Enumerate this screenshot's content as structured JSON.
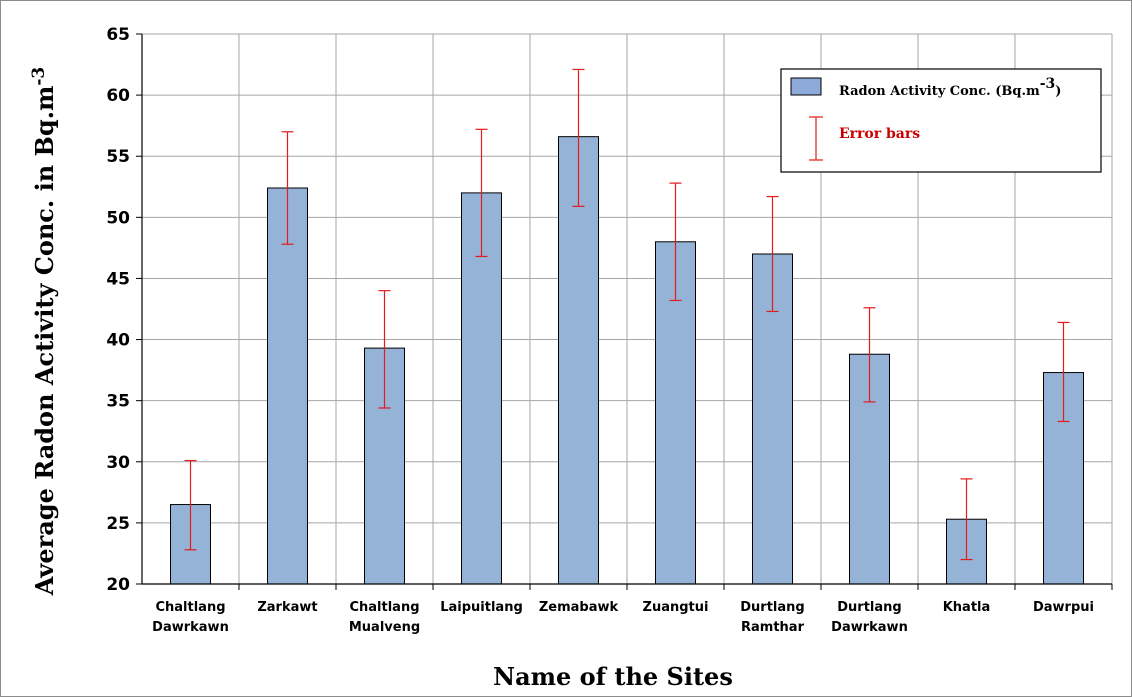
{
  "chart_data": {
    "type": "bar",
    "categories": [
      [
        "Chaltlang",
        "Dawrkawn"
      ],
      [
        "Zarkawt"
      ],
      [
        "Chaltlang",
        "Mualveng"
      ],
      [
        "Laipuitlang"
      ],
      [
        "Zemabawk"
      ],
      [
        "Zuangtui"
      ],
      [
        "Durtlang",
        "Ramthar"
      ],
      [
        "Durtlang",
        "Dawrkawn"
      ],
      [
        "Khatla"
      ],
      [
        "Dawrpui"
      ]
    ],
    "values": [
      26.5,
      52.4,
      39.3,
      52.0,
      56.6,
      48.0,
      47.0,
      38.8,
      25.3,
      37.3
    ],
    "error_upper": [
      30.1,
      57.0,
      44.0,
      57.2,
      62.1,
      52.8,
      51.7,
      42.6,
      28.6,
      41.4
    ],
    "error_lower": [
      22.8,
      47.8,
      34.4,
      46.8,
      50.9,
      43.2,
      42.3,
      34.9,
      22.0,
      33.3
    ],
    "xlabel": "Name of the Sites",
    "ylabel": "Average Radon Activity Conc. in Bq.m",
    "ylabel_superscript": "-3",
    "ylim": [
      20,
      65
    ],
    "yticks": [
      20,
      25,
      30,
      35,
      40,
      45,
      50,
      55,
      60,
      65
    ],
    "grid": true,
    "legend_position": "top-right",
    "legend": {
      "bar_label": "Radon Activity Conc. (Bq.m",
      "bar_label_superscript": "-3",
      "bar_label_close": ")",
      "error_label": "Error bars"
    },
    "colors": {
      "bar_fill": "#95b3d7",
      "bar_stroke": "#000000",
      "error_bar": "#e41a1c",
      "grid": "#a6a6a6",
      "legend_swatch": "#8eaadb"
    }
  }
}
